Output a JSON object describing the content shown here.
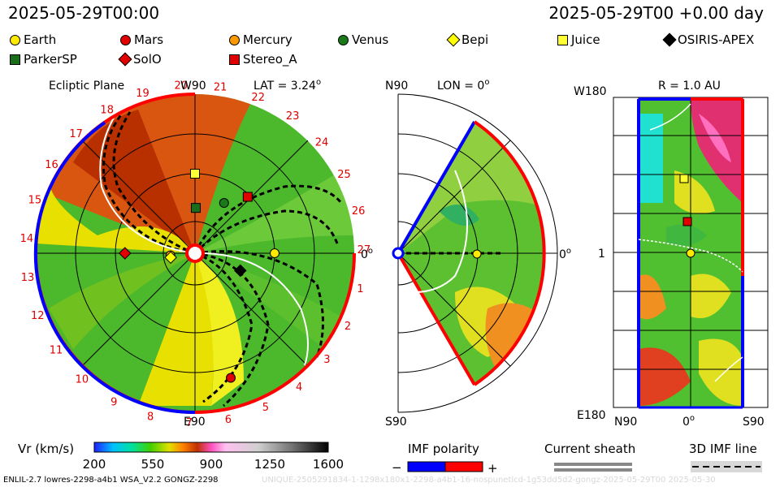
{
  "header": {
    "title_left": "2025-05-29T00:00",
    "title_right": "2025-05-29T00 +0.00 day"
  },
  "legend": [
    {
      "label": "Earth",
      "color": "#ffea00",
      "shape": "circle"
    },
    {
      "label": "Mars",
      "color": "#e00000",
      "shape": "circle"
    },
    {
      "label": "Mercury",
      "color": "#ff9900",
      "shape": "circle"
    },
    {
      "label": "Venus",
      "color": "#1a7a1a",
      "shape": "circle"
    },
    {
      "label": "Bepi",
      "color": "#ffff00",
      "shape": "diamond"
    },
    {
      "label": "Juice",
      "color": "#ffff33",
      "shape": "square"
    },
    {
      "label": "OSIRIS-APEX",
      "color": "#000000",
      "shape": "diamond"
    },
    {
      "label": "ParkerSP",
      "color": "#1a6e1a",
      "shape": "square"
    },
    {
      "label": "SolO",
      "color": "#e00000",
      "shape": "diamond"
    },
    {
      "label": "Stereo_A",
      "color": "#e00000",
      "shape": "square"
    }
  ],
  "panels": {
    "ecliptic": {
      "title": "Ecliptic Plane",
      "lat_label": "LAT = 3.24",
      "lat_deg_symbol": "o",
      "top_label": "W90",
      "bottom_label": "E90",
      "zero_label": "0",
      "zero_deg_symbol": "o",
      "carrington_labels": [
        "1",
        "2",
        "3",
        "4",
        "5",
        "6",
        "7",
        "8",
        "9",
        "10",
        "11",
        "12",
        "13",
        "14",
        "15",
        "16",
        "17",
        "18",
        "19",
        "20",
        "21",
        "22",
        "23",
        "24",
        "25",
        "26",
        "27"
      ]
    },
    "meridional": {
      "lon_label": "LON = 0",
      "lon_deg_symbol": "o",
      "top_label": "N90",
      "bottom_label": "S90",
      "zero_label": "0",
      "zero_deg_symbol": "o"
    },
    "map": {
      "title": "R = 1.0 AU",
      "left_top": "W180",
      "left_mid": "1",
      "left_bottom": "E180",
      "bottom_left": "N90",
      "bottom_mid": "0",
      "bottom_mid_deg_symbol": "o",
      "bottom_right": "S90"
    }
  },
  "chart_data": {
    "type": "heatmap",
    "colorbar": {
      "label": "Vr (km/s)",
      "ticks": [
        200,
        550,
        900,
        1250,
        1600
      ],
      "range": [
        200,
        1600
      ]
    },
    "imf_polarity": {
      "label": "IMF polarity",
      "minus": "−",
      "plus": "+",
      "minus_color": "#0000ff",
      "plus_color": "#ff0000"
    },
    "current_sheath": {
      "label": "Current sheath"
    },
    "imf_line": {
      "label": "3D IMF line"
    },
    "spacecraft_positions_ecliptic": [
      {
        "name": "Earth",
        "r_au": 1.0,
        "lon_deg": 0
      },
      {
        "name": "Mercury",
        "r_au": 0.31,
        "lon_deg": -175
      },
      {
        "name": "Venus",
        "r_au": 0.73,
        "lon_deg": 60
      },
      {
        "name": "Mars",
        "r_au": 1.63,
        "lon_deg": -74
      },
      {
        "name": "Bepi",
        "r_au": 0.31,
        "lon_deg": -170
      },
      {
        "name": "Juice",
        "r_au": 1.0,
        "lon_deg": 90
      },
      {
        "name": "ParkerSP",
        "r_au": 0.57,
        "lon_deg": 89
      },
      {
        "name": "SolO",
        "r_au": 0.88,
        "lon_deg": 180
      },
      {
        "name": "Stereo_A",
        "r_au": 0.97,
        "lon_deg": 47
      },
      {
        "name": "OSIRIS-APEX",
        "r_au": 0.61,
        "lon_deg": -21
      }
    ]
  },
  "footer": {
    "left": "ENLIL-2.7 lowres-2298-a4b1 WSA_V2.2 GONGZ-2298",
    "right": "UNIQUE-2505291834-1-1298x180x1-2298-a4b1-16-nospunetlcd-1g53dd5d2-gongz-2025-05-29T00   2025-05-30"
  }
}
